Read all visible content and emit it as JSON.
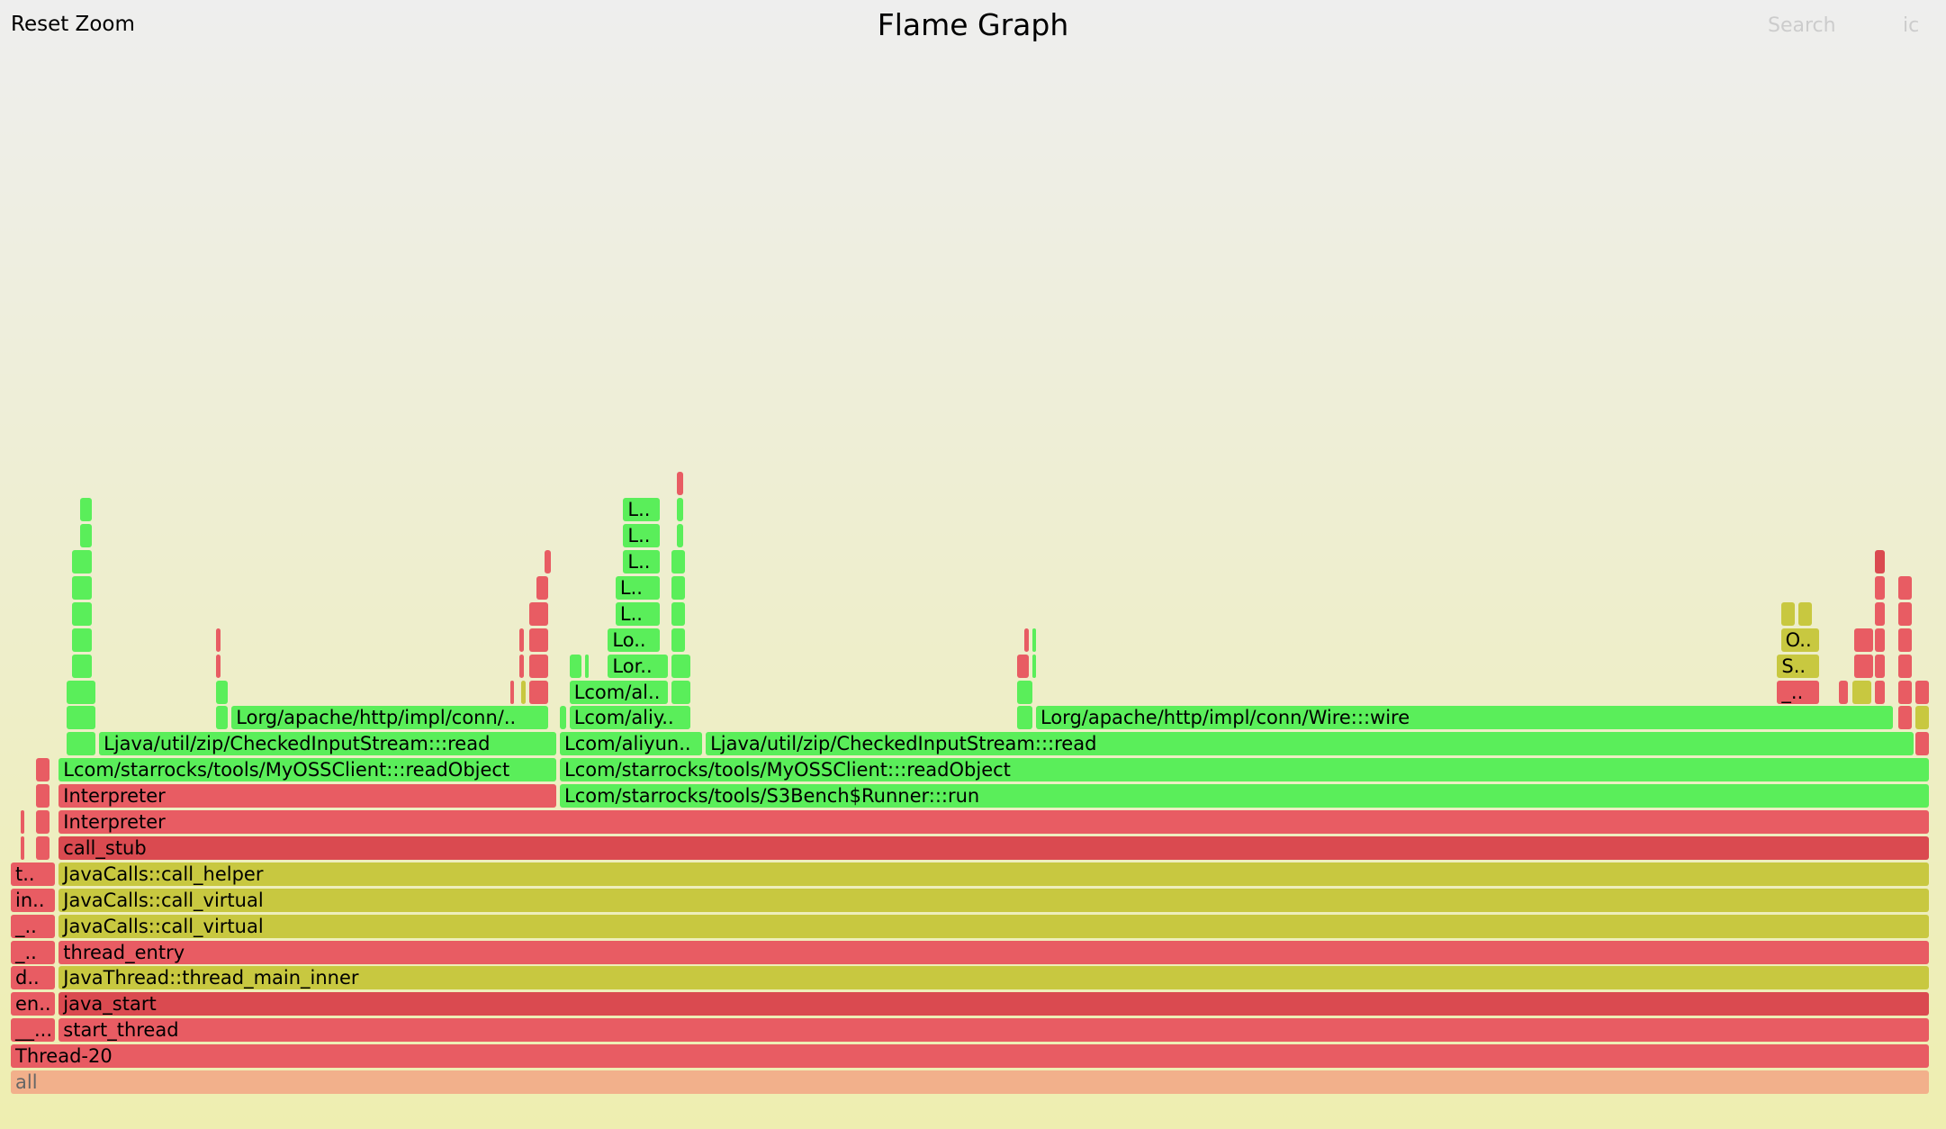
{
  "header": {
    "reset_zoom": "Reset Zoom",
    "title": "Flame Graph",
    "search": "Search",
    "ic": "ic"
  },
  "colors": {
    "red": "#e85c63",
    "dark_red": "#da4a50",
    "green": "#5aee5a",
    "yellow": "#c8c840",
    "root": "#f2b08b"
  },
  "frames": [
    {
      "d": 0,
      "x": 0.0,
      "w": 1.0,
      "c": "root",
      "label": "all"
    },
    {
      "d": 1,
      "x": 0.0,
      "w": 1.0,
      "c": "red",
      "label": "Thread-20"
    },
    {
      "d": 2,
      "x": 0.0,
      "w": 0.024,
      "c": "red",
      "label": "__..."
    },
    {
      "d": 2,
      "x": 0.025,
      "w": 0.975,
      "c": "red",
      "label": "start_thread"
    },
    {
      "d": 3,
      "x": 0.0,
      "w": 0.024,
      "c": "red",
      "label": "en.."
    },
    {
      "d": 3,
      "x": 0.025,
      "w": 0.975,
      "c": "dark_red",
      "label": "java_start"
    },
    {
      "d": 4,
      "x": 0.0,
      "w": 0.024,
      "c": "red",
      "label": "d.."
    },
    {
      "d": 4,
      "x": 0.025,
      "w": 0.975,
      "c": "yellow",
      "label": "JavaThread::thread_main_inner"
    },
    {
      "d": 5,
      "x": 0.0,
      "w": 0.024,
      "c": "red",
      "label": "_.."
    },
    {
      "d": 5,
      "x": 0.025,
      "w": 0.975,
      "c": "red",
      "label": "thread_entry"
    },
    {
      "d": 6,
      "x": 0.0,
      "w": 0.024,
      "c": "red",
      "label": "_.."
    },
    {
      "d": 6,
      "x": 0.025,
      "w": 0.975,
      "c": "yellow",
      "label": "JavaCalls::call_virtual"
    },
    {
      "d": 7,
      "x": 0.0,
      "w": 0.024,
      "c": "red",
      "label": "in.."
    },
    {
      "d": 7,
      "x": 0.025,
      "w": 0.975,
      "c": "yellow",
      "label": "JavaCalls::call_virtual"
    },
    {
      "d": 8,
      "x": 0.0,
      "w": 0.024,
      "c": "red",
      "label": "t.."
    },
    {
      "d": 8,
      "x": 0.025,
      "w": 0.975,
      "c": "yellow",
      "label": "JavaCalls::call_helper"
    },
    {
      "d": 9,
      "x": 0.005,
      "w": 0.003,
      "c": "red",
      "label": ""
    },
    {
      "d": 9,
      "x": 0.013,
      "w": 0.008,
      "c": "red",
      "label": ""
    },
    {
      "d": 9,
      "x": 0.025,
      "w": 0.975,
      "c": "dark_red",
      "label": "call_stub"
    },
    {
      "d": 10,
      "x": 0.005,
      "w": 0.003,
      "c": "red",
      "label": ""
    },
    {
      "d": 10,
      "x": 0.013,
      "w": 0.008,
      "c": "red",
      "label": ""
    },
    {
      "d": 10,
      "x": 0.025,
      "w": 0.975,
      "c": "red",
      "label": "Interpreter"
    },
    {
      "d": 11,
      "x": 0.013,
      "w": 0.008,
      "c": "red",
      "label": ""
    },
    {
      "d": 11,
      "x": 0.025,
      "w": 0.26,
      "c": "red",
      "label": "Interpreter"
    },
    {
      "d": 11,
      "x": 0.286,
      "w": 0.714,
      "c": "green",
      "label": "Lcom/starrocks/tools/S3Bench$Runner:::run"
    },
    {
      "d": 12,
      "x": 0.013,
      "w": 0.008,
      "c": "red",
      "label": ""
    },
    {
      "d": 12,
      "x": 0.025,
      "w": 0.26,
      "c": "green",
      "label": "Lcom/starrocks/tools/MyOSSClient:::readObject"
    },
    {
      "d": 12,
      "x": 0.286,
      "w": 0.714,
      "c": "green",
      "label": "Lcom/starrocks/tools/MyOSSClient:::readObject"
    },
    {
      "d": 13,
      "x": 0.029,
      "w": 0.016,
      "c": "green",
      "label": ""
    },
    {
      "d": 13,
      "x": 0.046,
      "w": 0.239,
      "c": "green",
      "label": "Ljava/util/zip/CheckedInputStream:::read"
    },
    {
      "d": 13,
      "x": 0.286,
      "w": 0.075,
      "c": "green",
      "label": "Lcom/aliyun.."
    },
    {
      "d": 13,
      "x": 0.362,
      "w": 0.63,
      "c": "green",
      "label": "Ljava/util/zip/CheckedInputStream:::read"
    },
    {
      "d": 13,
      "x": 0.992,
      "w": 0.008,
      "c": "red",
      "label": ""
    },
    {
      "d": 14,
      "x": 0.029,
      "w": 0.016,
      "c": "green",
      "label": ""
    },
    {
      "d": 14,
      "x": 0.107,
      "w": 0.007,
      "c": "green",
      "label": ""
    },
    {
      "d": 14,
      "x": 0.115,
      "w": 0.166,
      "c": "green",
      "label": "Lorg/apache/http/impl/conn/.."
    },
    {
      "d": 14,
      "x": 0.286,
      "w": 0.004,
      "c": "green",
      "label": ""
    },
    {
      "d": 14,
      "x": 0.291,
      "w": 0.064,
      "c": "green",
      "label": "Lcom/aliy.."
    },
    {
      "d": 14,
      "x": 0.524,
      "w": 0.009,
      "c": "green",
      "label": ""
    },
    {
      "d": 14,
      "x": 0.534,
      "w": 0.447,
      "c": "green",
      "label": "Lorg/apache/http/impl/conn/Wire:::wire"
    },
    {
      "d": 14,
      "x": 0.983,
      "w": 0.008,
      "c": "red",
      "label": ""
    },
    {
      "d": 14,
      "x": 0.992,
      "w": 0.008,
      "c": "yellow",
      "label": ""
    },
    {
      "d": 15,
      "x": 0.029,
      "w": 0.016,
      "c": "green",
      "label": ""
    },
    {
      "d": 15,
      "x": 0.107,
      "w": 0.007,
      "c": "green",
      "label": ""
    },
    {
      "d": 15,
      "x": 0.26,
      "w": 0.003,
      "c": "red",
      "label": ""
    },
    {
      "d": 15,
      "x": 0.266,
      "w": 0.003,
      "c": "yellow",
      "label": ""
    },
    {
      "d": 15,
      "x": 0.27,
      "w": 0.011,
      "c": "red",
      "label": ""
    },
    {
      "d": 15,
      "x": 0.291,
      "w": 0.052,
      "c": "green",
      "label": "Lcom/al.."
    },
    {
      "d": 15,
      "x": 0.344,
      "w": 0.011,
      "c": "green",
      "label": ""
    },
    {
      "d": 15,
      "x": 0.524,
      "w": 0.009,
      "c": "green",
      "label": ""
    },
    {
      "d": 15,
      "x": 0.92,
      "w": 0.023,
      "c": "red",
      "label": "_.."
    },
    {
      "d": 15,
      "x": 0.952,
      "w": 0.006,
      "c": "red",
      "label": ""
    },
    {
      "d": 15,
      "x": 0.959,
      "w": 0.011,
      "c": "yellow",
      "label": ""
    },
    {
      "d": 15,
      "x": 0.971,
      "w": 0.006,
      "c": "red",
      "label": ""
    },
    {
      "d": 15,
      "x": 0.983,
      "w": 0.008,
      "c": "red",
      "label": ""
    },
    {
      "d": 15,
      "x": 0.992,
      "w": 0.008,
      "c": "red",
      "label": ""
    },
    {
      "d": 16,
      "x": 0.032,
      "w": 0.011,
      "c": "green",
      "label": ""
    },
    {
      "d": 16,
      "x": 0.107,
      "w": 0.003,
      "c": "red",
      "label": ""
    },
    {
      "d": 16,
      "x": 0.265,
      "w": 0.003,
      "c": "red",
      "label": ""
    },
    {
      "d": 16,
      "x": 0.27,
      "w": 0.011,
      "c": "red",
      "label": ""
    },
    {
      "d": 16,
      "x": 0.291,
      "w": 0.007,
      "c": "green",
      "label": ""
    },
    {
      "d": 16,
      "x": 0.299,
      "w": 0.003,
      "c": "green",
      "label": ""
    },
    {
      "d": 16,
      "x": 0.311,
      "w": 0.032,
      "c": "green",
      "label": "Lor.."
    },
    {
      "d": 16,
      "x": 0.344,
      "w": 0.011,
      "c": "green",
      "label": ""
    },
    {
      "d": 16,
      "x": 0.524,
      "w": 0.007,
      "c": "red",
      "label": ""
    },
    {
      "d": 16,
      "x": 0.532,
      "w": 0.003,
      "c": "green",
      "label": ""
    },
    {
      "d": 16,
      "x": 0.92,
      "w": 0.023,
      "c": "yellow",
      "label": "S.."
    },
    {
      "d": 16,
      "x": 0.96,
      "w": 0.011,
      "c": "red",
      "label": ""
    },
    {
      "d": 16,
      "x": 0.971,
      "w": 0.006,
      "c": "red",
      "label": ""
    },
    {
      "d": 16,
      "x": 0.983,
      "w": 0.008,
      "c": "red",
      "label": ""
    },
    {
      "d": 17,
      "x": 0.032,
      "w": 0.011,
      "c": "green",
      "label": ""
    },
    {
      "d": 17,
      "x": 0.107,
      "w": 0.003,
      "c": "red",
      "label": ""
    },
    {
      "d": 17,
      "x": 0.265,
      "w": 0.003,
      "c": "red",
      "label": ""
    },
    {
      "d": 17,
      "x": 0.27,
      "w": 0.011,
      "c": "red",
      "label": ""
    },
    {
      "d": 17,
      "x": 0.311,
      "w": 0.028,
      "c": "green",
      "label": "Lo.."
    },
    {
      "d": 17,
      "x": 0.344,
      "w": 0.008,
      "c": "green",
      "label": ""
    },
    {
      "d": 17,
      "x": 0.528,
      "w": 0.003,
      "c": "red",
      "label": ""
    },
    {
      "d": 17,
      "x": 0.532,
      "w": 0.003,
      "c": "green",
      "label": ""
    },
    {
      "d": 17,
      "x": 0.922,
      "w": 0.021,
      "c": "yellow",
      "label": "O.."
    },
    {
      "d": 17,
      "x": 0.96,
      "w": 0.011,
      "c": "red",
      "label": ""
    },
    {
      "d": 17,
      "x": 0.971,
      "w": 0.006,
      "c": "red",
      "label": ""
    },
    {
      "d": 17,
      "x": 0.983,
      "w": 0.008,
      "c": "red",
      "label": ""
    },
    {
      "d": 18,
      "x": 0.032,
      "w": 0.011,
      "c": "green",
      "label": ""
    },
    {
      "d": 18,
      "x": 0.27,
      "w": 0.011,
      "c": "red",
      "label": ""
    },
    {
      "d": 18,
      "x": 0.315,
      "w": 0.024,
      "c": "green",
      "label": "L.."
    },
    {
      "d": 18,
      "x": 0.344,
      "w": 0.008,
      "c": "green",
      "label": ""
    },
    {
      "d": 18,
      "x": 0.922,
      "w": 0.008,
      "c": "yellow",
      "label": ""
    },
    {
      "d": 18,
      "x": 0.931,
      "w": 0.008,
      "c": "yellow",
      "label": ""
    },
    {
      "d": 18,
      "x": 0.971,
      "w": 0.006,
      "c": "red",
      "label": ""
    },
    {
      "d": 18,
      "x": 0.983,
      "w": 0.008,
      "c": "red",
      "label": ""
    },
    {
      "d": 19,
      "x": 0.032,
      "w": 0.011,
      "c": "green",
      "label": ""
    },
    {
      "d": 19,
      "x": 0.274,
      "w": 0.007,
      "c": "red",
      "label": ""
    },
    {
      "d": 19,
      "x": 0.315,
      "w": 0.024,
      "c": "green",
      "label": "L.."
    },
    {
      "d": 19,
      "x": 0.344,
      "w": 0.008,
      "c": "green",
      "label": ""
    },
    {
      "d": 19,
      "x": 0.971,
      "w": 0.006,
      "c": "red",
      "label": ""
    },
    {
      "d": 19,
      "x": 0.983,
      "w": 0.008,
      "c": "red",
      "label": ""
    },
    {
      "d": 20,
      "x": 0.032,
      "w": 0.011,
      "c": "green",
      "label": ""
    },
    {
      "d": 20,
      "x": 0.278,
      "w": 0.004,
      "c": "red",
      "label": ""
    },
    {
      "d": 20,
      "x": 0.319,
      "w": 0.02,
      "c": "green",
      "label": "L.."
    },
    {
      "d": 20,
      "x": 0.344,
      "w": 0.008,
      "c": "green",
      "label": ""
    },
    {
      "d": 20,
      "x": 0.971,
      "w": 0.006,
      "c": "dark_red",
      "label": ""
    },
    {
      "d": 21,
      "x": 0.036,
      "w": 0.007,
      "c": "green",
      "label": ""
    },
    {
      "d": 21,
      "x": 0.319,
      "w": 0.02,
      "c": "green",
      "label": "L.."
    },
    {
      "d": 21,
      "x": 0.347,
      "w": 0.004,
      "c": "green",
      "label": ""
    },
    {
      "d": 22,
      "x": 0.036,
      "w": 0.007,
      "c": "green",
      "label": ""
    },
    {
      "d": 22,
      "x": 0.319,
      "w": 0.02,
      "c": "green",
      "label": "L.."
    },
    {
      "d": 22,
      "x": 0.347,
      "w": 0.004,
      "c": "green",
      "label": ""
    },
    {
      "d": 23,
      "x": 0.347,
      "w": 0.004,
      "c": "red",
      "label": ""
    }
  ]
}
